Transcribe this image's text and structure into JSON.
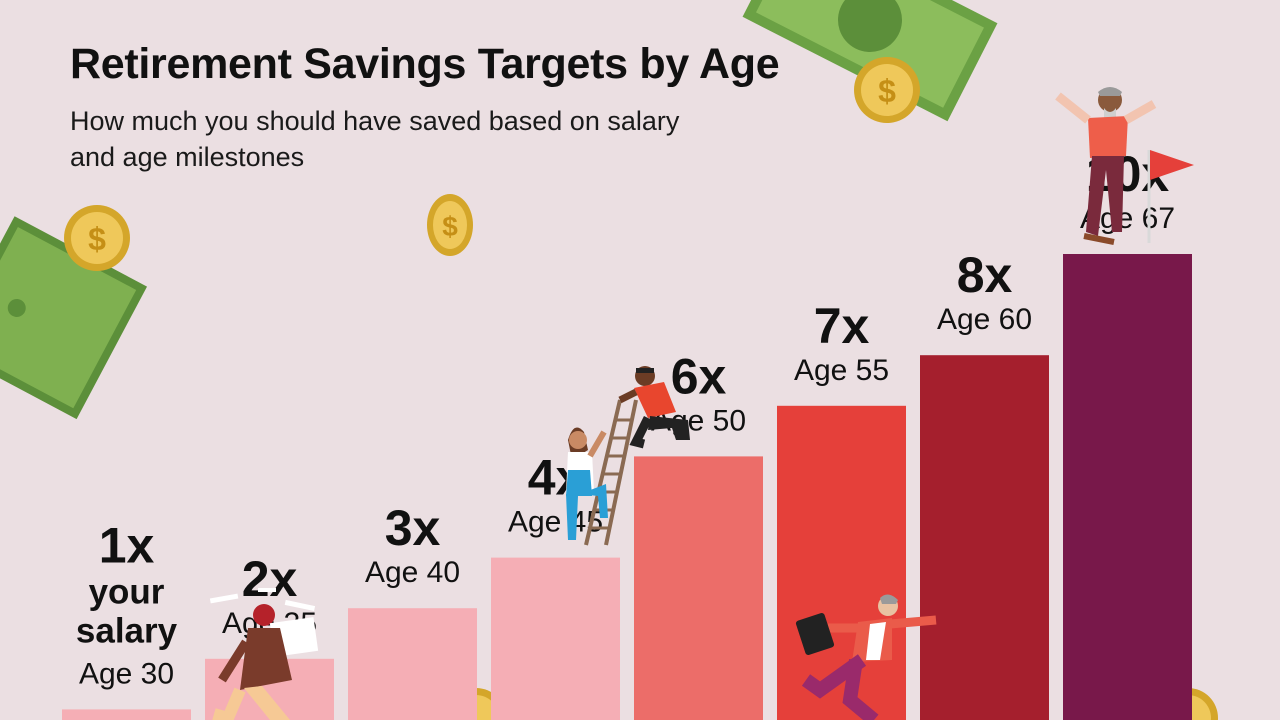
{
  "title": "Retirement Savings Targets by Age",
  "subtitle": "How much you should have saved based on salary and age milestones",
  "chart_data": {
    "type": "bar",
    "title": "Retirement Savings Targets by Age",
    "subtitle": "How much you should have saved based on salary and age milestones",
    "categories": [
      "Age 30",
      "Age 35",
      "Age 40",
      "Age 45",
      "Age 50",
      "Age 55",
      "Age 60",
      "Age 67"
    ],
    "values": [
      1,
      2,
      3,
      4,
      6,
      7,
      8,
      10
    ],
    "value_labels": [
      "1x",
      "2x",
      "3x",
      "4x",
      "6x",
      "7x",
      "8x",
      "10x"
    ],
    "first_bar_note": "your salary",
    "bar_colors": [
      "#f5aeb5",
      "#f5aeb5",
      "#f5aeb5",
      "#f5aeb5",
      "#ec6d69",
      "#e5403a",
      "#a51f2d",
      "#78184a"
    ],
    "ylim": [
      0,
      10
    ],
    "grid": false,
    "legend": "none"
  },
  "icons": [
    "banknote-icon",
    "dollar-coin-icon",
    "person-running-icon",
    "person-climbing-ladder-icon",
    "person-kneeling-icon",
    "person-carrying-papers-icon",
    "person-celebrating-icon",
    "red-flag-icon"
  ]
}
